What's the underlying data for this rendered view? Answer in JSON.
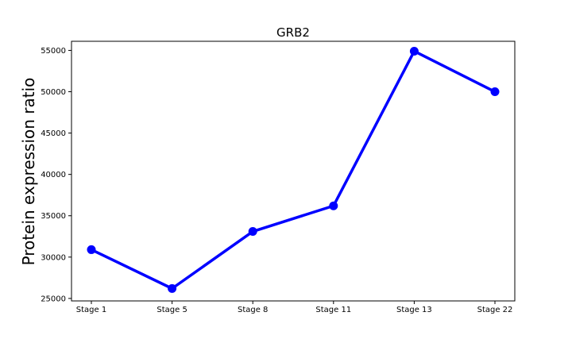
{
  "chart_data": {
    "type": "line",
    "title": "GRB2",
    "xlabel": "",
    "ylabel": "Protein expression ratio",
    "categories": [
      "Stage 1",
      "Stage 5",
      "Stage 8",
      "Stage 11",
      "Stage 13",
      "Stage 22"
    ],
    "series": [
      {
        "values": [
          30900,
          26200,
          33100,
          36200,
          54900,
          50000
        ],
        "color": "#0000ff"
      }
    ],
    "yticks": [
      25000,
      30000,
      35000,
      40000,
      45000,
      50000,
      55000
    ],
    "ylim": [
      24700,
      56100
    ],
    "grid": false,
    "legend": "none",
    "line_color": "#0000ff",
    "marker": "circle"
  }
}
